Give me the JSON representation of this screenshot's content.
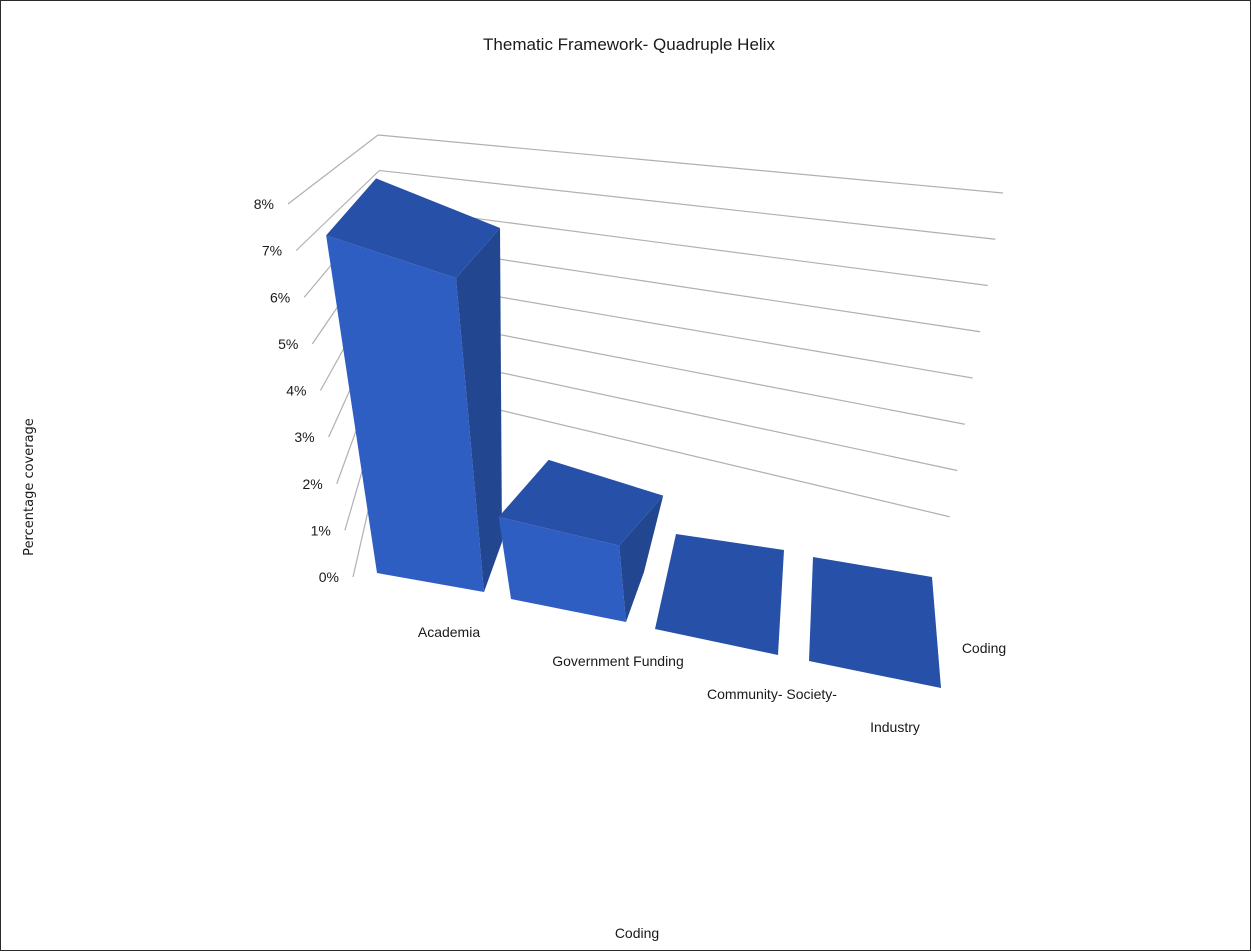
{
  "chart_data": {
    "type": "bar",
    "title": "Thematic Framework- Quadruple Helix",
    "xlabel": "Coding",
    "ylabel": "Percentage coverage",
    "y_ticks": [
      "0%",
      "1%",
      "2%",
      "3%",
      "4%",
      "5%",
      "6%",
      "7%",
      "8%"
    ],
    "ylim": [
      0,
      8
    ],
    "categories": [
      "Academia",
      "Government Funding",
      "Community- Society-",
      "Industry"
    ],
    "values": [
      7.4,
      1.8,
      0.0,
      0.0
    ],
    "depth_label": "Coding",
    "grid": true,
    "colors": {
      "front": "#2f5ec2",
      "top": "#2750a8",
      "side": "#234690",
      "grid": "#b0b0b0"
    }
  }
}
